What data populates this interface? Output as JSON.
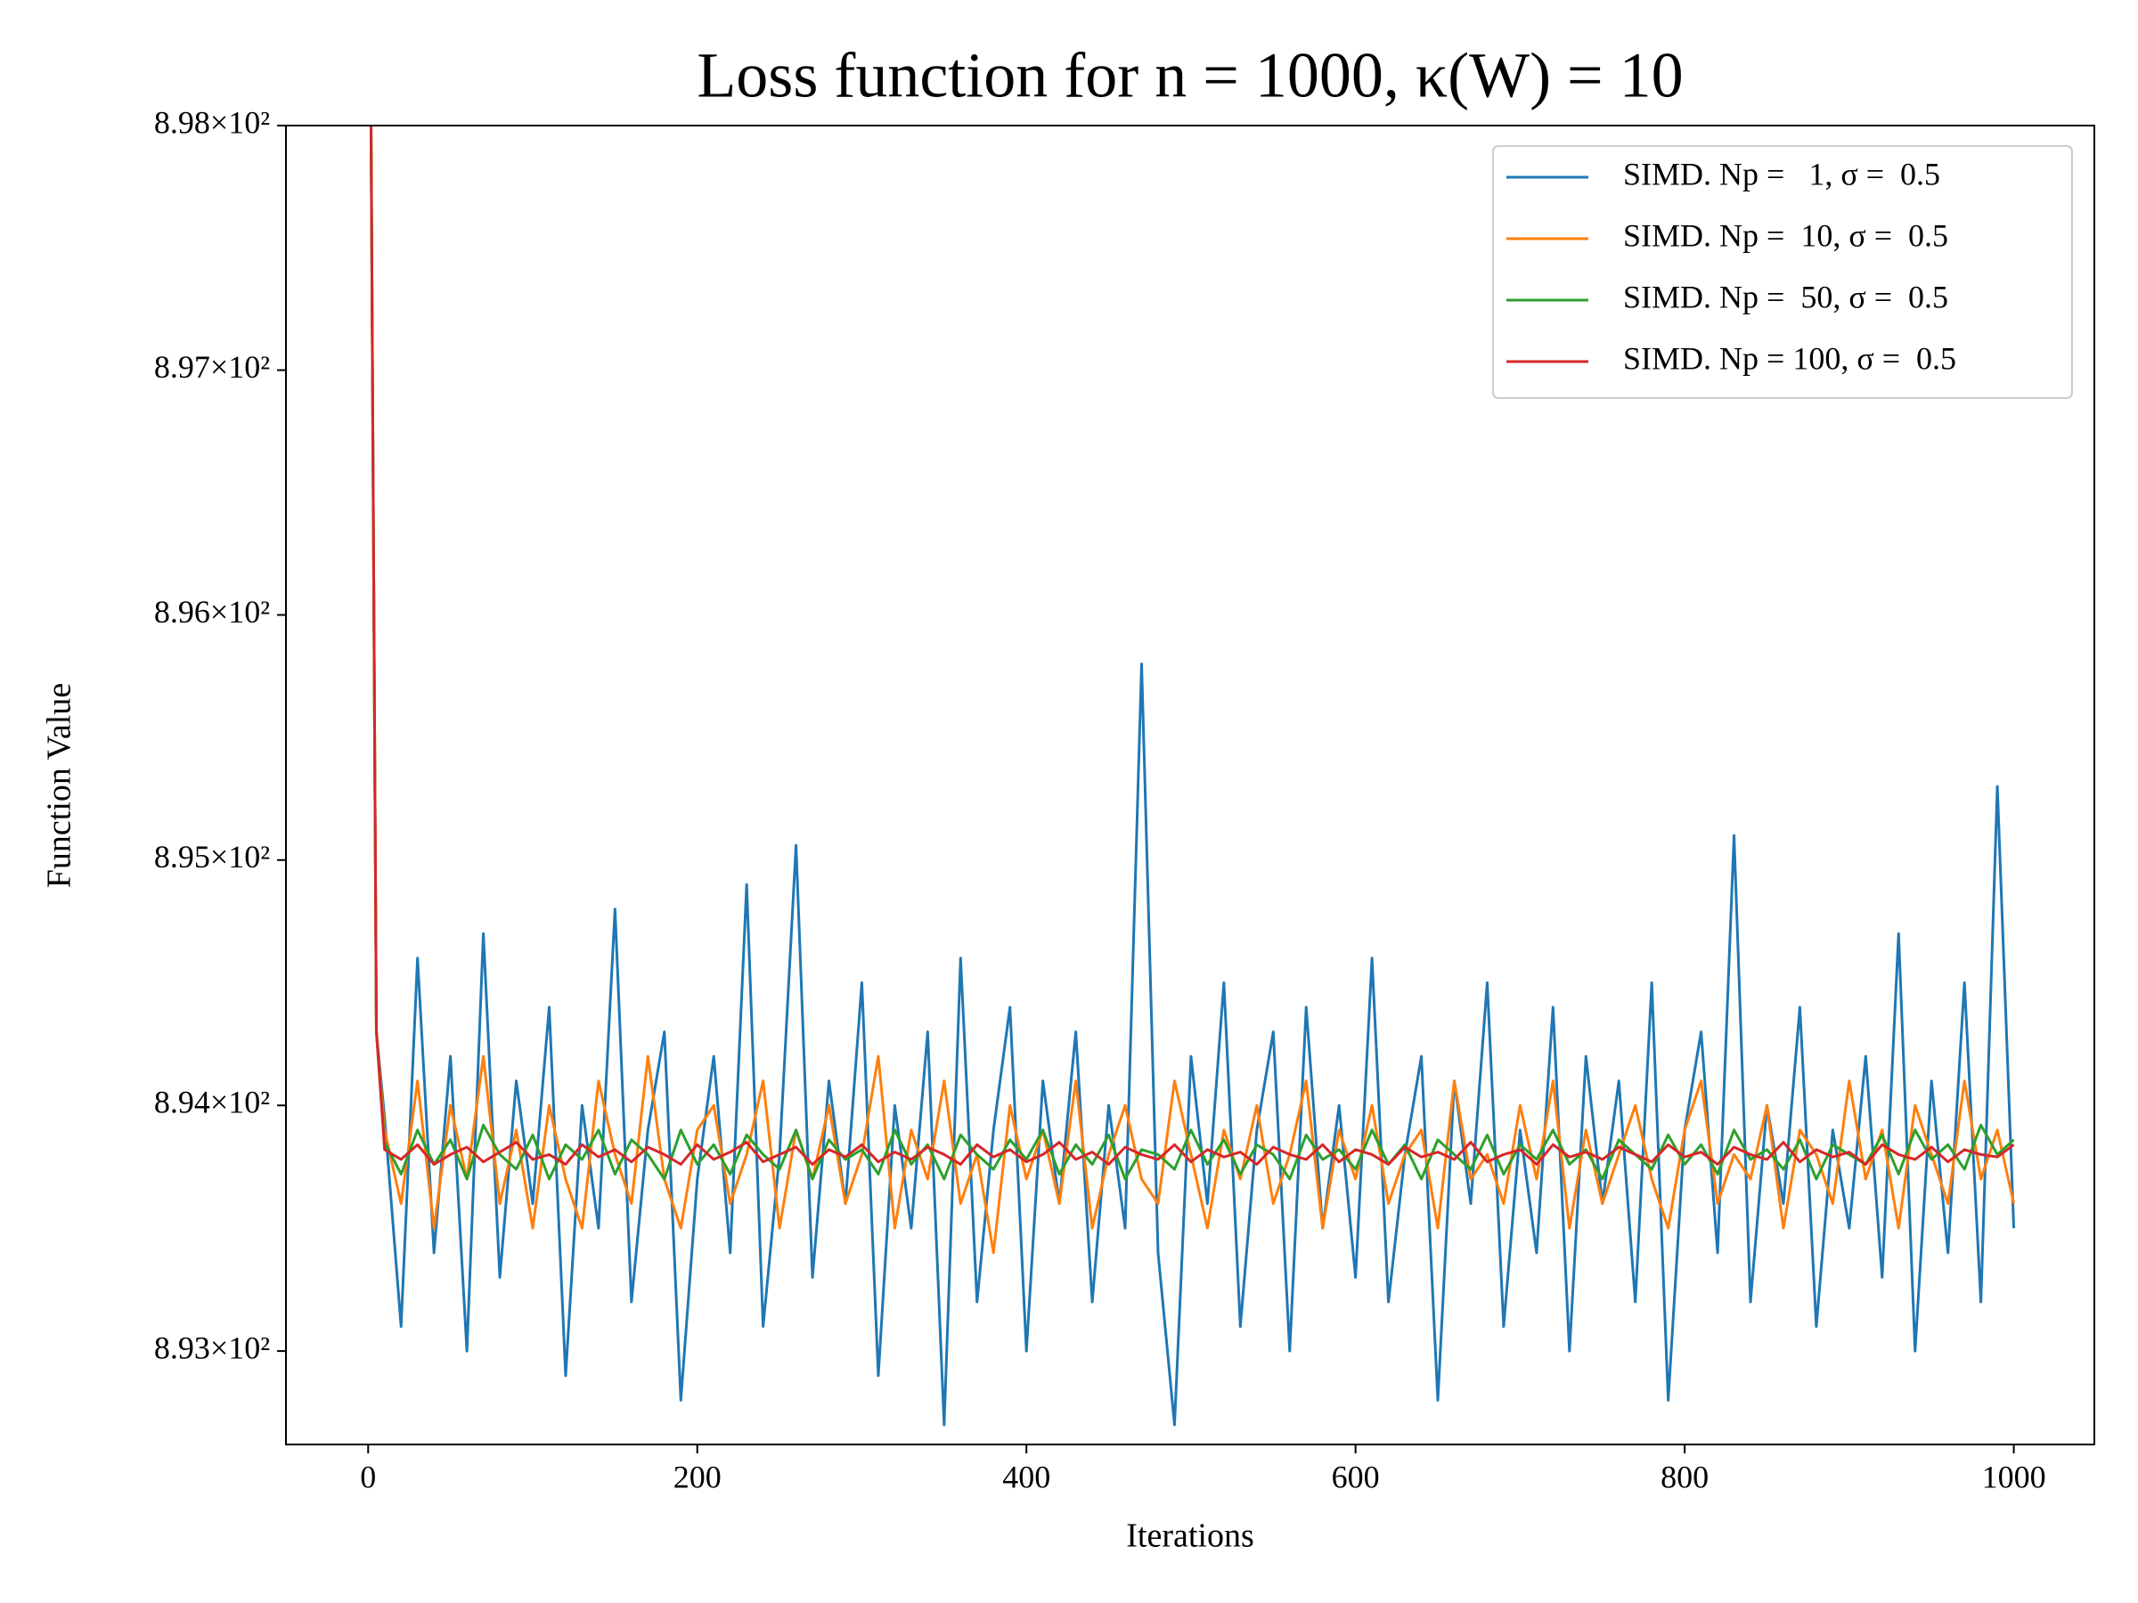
{
  "chart_data": {
    "type": "line",
    "title": "Loss function for n = 1000, κ(W) = 10",
    "xlabel": "Iterations",
    "ylabel": "Function Value",
    "yscale": "log",
    "xlim": [
      -49.95,
      1048.95
    ],
    "ylim": [
      892.62,
      898.0
    ],
    "xticks": [
      0,
      200,
      400,
      600,
      800,
      1000
    ],
    "yticks": [
      {
        "value": 893,
        "label": "8.93×10²"
      },
      {
        "value": 894,
        "label": "8.94×10²"
      },
      {
        "value": 895,
        "label": "8.95×10²"
      },
      {
        "value": 896,
        "label": "8.96×10²"
      },
      {
        "value": 897,
        "label": "8.97×10²"
      },
      {
        "value": 898,
        "label": "8.98×10²"
      }
    ],
    "grid": false,
    "legend": "upper right",
    "x": [
      0,
      5,
      10,
      20,
      30,
      40,
      50,
      60,
      70,
      80,
      90,
      100,
      110,
      120,
      130,
      140,
      150,
      160,
      170,
      180,
      190,
      200,
      210,
      220,
      230,
      240,
      250,
      260,
      270,
      280,
      290,
      300,
      310,
      320,
      330,
      340,
      350,
      360,
      370,
      380,
      390,
      400,
      410,
      420,
      430,
      440,
      450,
      460,
      470,
      480,
      490,
      500,
      510,
      520,
      530,
      540,
      550,
      560,
      570,
      580,
      590,
      600,
      610,
      620,
      630,
      640,
      650,
      660,
      670,
      680,
      690,
      700,
      710,
      720,
      730,
      740,
      750,
      760,
      770,
      780,
      790,
      800,
      810,
      820,
      830,
      840,
      850,
      860,
      870,
      880,
      890,
      900,
      910,
      920,
      930,
      940,
      950,
      960,
      970,
      980,
      990,
      1000
    ],
    "series": [
      {
        "name": "SIMD. Np =   1, σ =  0.5",
        "color": "#1f77b4",
        "values": [
          900.0,
          894.3,
          893.95,
          893.1,
          894.6,
          893.4,
          894.2,
          893.0,
          894.7,
          893.3,
          894.1,
          893.6,
          894.4,
          892.9,
          894.0,
          893.5,
          894.8,
          893.2,
          893.9,
          894.3,
          892.8,
          893.7,
          894.2,
          893.4,
          894.9,
          893.1,
          893.8,
          895.06,
          893.3,
          894.1,
          893.6,
          894.5,
          892.9,
          894.0,
          893.5,
          894.3,
          892.7,
          894.6,
          893.2,
          893.9,
          894.4,
          893.0,
          894.1,
          893.6,
          894.3,
          893.2,
          894.0,
          893.5,
          895.8,
          893.4,
          892.7,
          894.2,
          893.6,
          894.5,
          893.1,
          893.9,
          894.3,
          893.0,
          894.4,
          893.5,
          894.0,
          893.3,
          894.6,
          893.2,
          893.8,
          894.2,
          892.8,
          894.1,
          893.6,
          894.5,
          893.1,
          893.9,
          893.4,
          894.4,
          893.0,
          894.2,
          893.6,
          894.1,
          893.2,
          894.5,
          892.8,
          893.9,
          894.3,
          893.4,
          895.1,
          893.2,
          894.0,
          893.6,
          894.4,
          893.1,
          893.9,
          893.5,
          894.2,
          893.3,
          894.7,
          893.0,
          894.1,
          893.4,
          894.5,
          893.2,
          895.3,
          893.5
        ]
      },
      {
        "name": "SIMD. Np =  10, σ =  0.5",
        "color": "#ff7f0e",
        "values": [
          900.0,
          894.3,
          893.9,
          893.6,
          894.1,
          893.5,
          894.0,
          893.7,
          894.2,
          893.6,
          893.9,
          893.5,
          894.0,
          893.7,
          893.5,
          894.1,
          893.8,
          893.6,
          894.2,
          893.7,
          893.5,
          893.9,
          894.0,
          893.6,
          893.8,
          894.1,
          893.5,
          893.9,
          893.7,
          894.0,
          893.6,
          893.8,
          894.2,
          893.5,
          893.9,
          893.7,
          894.1,
          893.6,
          893.8,
          893.4,
          894.0,
          893.7,
          893.9,
          893.6,
          894.1,
          893.5,
          893.8,
          894.0,
          893.7,
          893.6,
          894.1,
          893.8,
          893.5,
          893.9,
          893.7,
          894.0,
          893.6,
          893.8,
          894.1,
          893.5,
          893.9,
          893.7,
          894.0,
          893.6,
          893.8,
          893.9,
          893.5,
          894.1,
          893.7,
          893.8,
          893.6,
          894.0,
          893.7,
          894.1,
          893.5,
          893.9,
          893.6,
          893.8,
          894.0,
          893.7,
          893.5,
          893.9,
          894.1,
          893.6,
          893.8,
          893.7,
          894.0,
          893.5,
          893.9,
          893.8,
          893.6,
          894.1,
          893.7,
          893.9,
          893.5,
          894.0,
          893.8,
          893.6,
          894.1,
          893.7,
          893.9,
          893.6
        ]
      },
      {
        "name": "SIMD. Np =  50, σ =  0.5",
        "color": "#2ca02c",
        "values": [
          900.0,
          894.3,
          893.85,
          893.72,
          893.9,
          893.76,
          893.86,
          893.7,
          893.92,
          893.8,
          893.74,
          893.88,
          893.7,
          893.84,
          893.78,
          893.9,
          893.72,
          893.86,
          893.8,
          893.7,
          893.9,
          893.76,
          893.84,
          893.72,
          893.88,
          893.8,
          893.74,
          893.9,
          893.7,
          893.86,
          893.78,
          893.82,
          893.72,
          893.9,
          893.76,
          893.84,
          893.7,
          893.88,
          893.8,
          893.74,
          893.86,
          893.78,
          893.9,
          893.72,
          893.84,
          893.76,
          893.88,
          893.7,
          893.82,
          893.8,
          893.74,
          893.9,
          893.76,
          893.86,
          893.72,
          893.84,
          893.8,
          893.7,
          893.88,
          893.78,
          893.82,
          893.74,
          893.9,
          893.76,
          893.84,
          893.7,
          893.86,
          893.8,
          893.74,
          893.88,
          893.72,
          893.84,
          893.78,
          893.9,
          893.76,
          893.82,
          893.7,
          893.86,
          893.8,
          893.74,
          893.88,
          893.76,
          893.84,
          893.72,
          893.9,
          893.78,
          893.82,
          893.74,
          893.86,
          893.7,
          893.84,
          893.8,
          893.76,
          893.88,
          893.72,
          893.9,
          893.78,
          893.84,
          893.74,
          893.92,
          893.8,
          893.86
        ]
      },
      {
        "name": "SIMD. Np = 100, σ =  0.5",
        "color": "#d62728",
        "values": [
          900.0,
          894.3,
          893.82,
          893.78,
          893.84,
          893.76,
          893.8,
          893.83,
          893.77,
          893.81,
          893.85,
          893.78,
          893.8,
          893.76,
          893.84,
          893.79,
          893.82,
          893.77,
          893.83,
          893.8,
          893.76,
          893.84,
          893.78,
          893.81,
          893.85,
          893.77,
          893.8,
          893.83,
          893.76,
          893.82,
          893.79,
          893.84,
          893.77,
          893.81,
          893.78,
          893.83,
          893.8,
          893.76,
          893.84,
          893.79,
          893.82,
          893.77,
          893.8,
          893.85,
          893.78,
          893.81,
          893.76,
          893.83,
          893.8,
          893.78,
          893.84,
          893.77,
          893.82,
          893.79,
          893.81,
          893.76,
          893.83,
          893.8,
          893.78,
          893.84,
          893.77,
          893.82,
          893.8,
          893.76,
          893.83,
          893.79,
          893.81,
          893.78,
          893.85,
          893.77,
          893.8,
          893.82,
          893.76,
          893.84,
          893.79,
          893.81,
          893.78,
          893.83,
          893.8,
          893.77,
          893.84,
          893.79,
          893.81,
          893.76,
          893.83,
          893.8,
          893.78,
          893.85,
          893.77,
          893.82,
          893.79,
          893.81,
          893.76,
          893.84,
          893.8,
          893.78,
          893.83,
          893.77,
          893.82,
          893.8,
          893.79,
          893.84
        ]
      }
    ]
  }
}
